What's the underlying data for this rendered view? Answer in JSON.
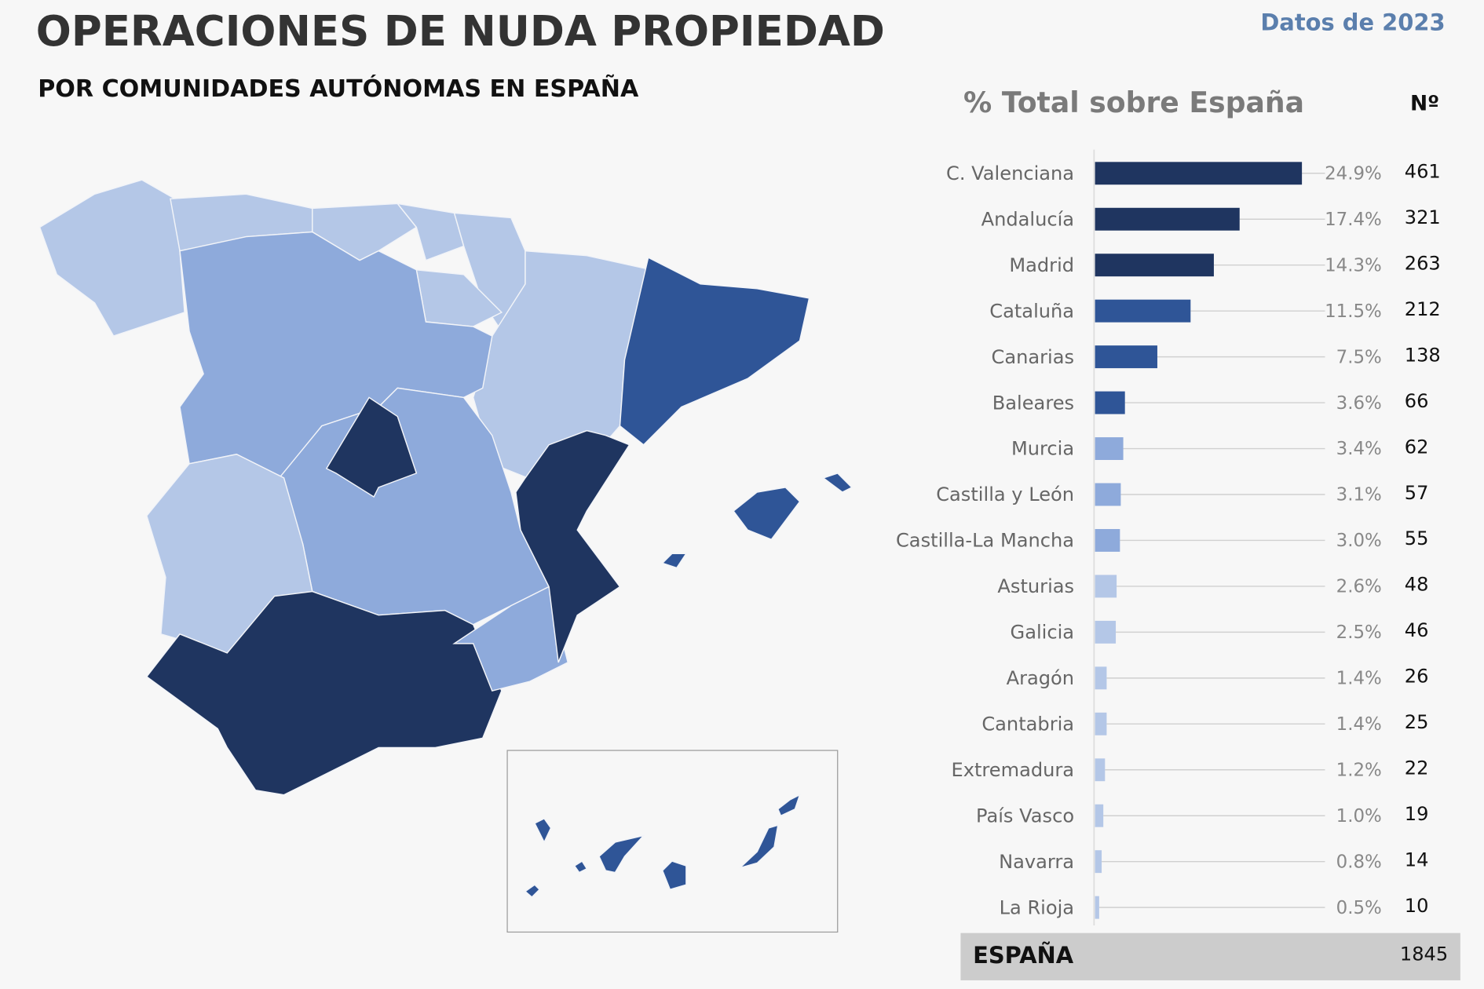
{
  "chart_data": {
    "type": "bar",
    "title": "OPERACIONES DE NUDA PROPIEDAD",
    "subtitle": "POR COMUNIDADES AUTÓNOMAS EN ESPAÑA",
    "note": "Datos de 2023",
    "value_header": "% Total sobre España",
    "count_header": "Nº",
    "categories": [
      "C. Valenciana",
      "Andalucía",
      "Madrid",
      "Cataluña",
      "Canarias",
      "Baleares",
      "Murcia",
      "Castilla y León",
      "Castilla-La Mancha",
      "Asturias",
      "Galicia",
      "Aragón",
      "Cantabria",
      "Extremadura",
      "País Vasco",
      "Navarra",
      "La Rioja"
    ],
    "values": [
      24.9,
      17.4,
      14.3,
      11.5,
      7.5,
      3.6,
      3.4,
      3.1,
      3.0,
      2.6,
      2.5,
      1.4,
      1.4,
      1.2,
      1.0,
      0.8,
      0.5
    ],
    "value_labels": [
      "24.9%",
      "17.4%",
      "14.3%",
      "11.5%",
      "7.5%",
      "3.6%",
      "3.4%",
      "3.1%",
      "3.0%",
      "2.6%",
      "2.5%",
      "1.4%",
      "1.4%",
      "1.2%",
      "1.0%",
      "0.8%",
      "0.5%"
    ],
    "counts": [
      461,
      321,
      263,
      212,
      138,
      66,
      62,
      57,
      55,
      48,
      46,
      26,
      25,
      22,
      19,
      14,
      10
    ],
    "colors": [
      "#1f3560",
      "#1f3560",
      "#1f3560",
      "#2f5597",
      "#2f5597",
      "#2f5597",
      "#8eaadb",
      "#8eaadb",
      "#8eaadb",
      "#b4c7e7",
      "#b4c7e7",
      "#b4c7e7",
      "#b4c7e7",
      "#b4c7e7",
      "#b4c7e7",
      "#b4c7e7",
      "#b4c7e7"
    ],
    "total_label": "ESPAÑA",
    "total": 1845
  }
}
